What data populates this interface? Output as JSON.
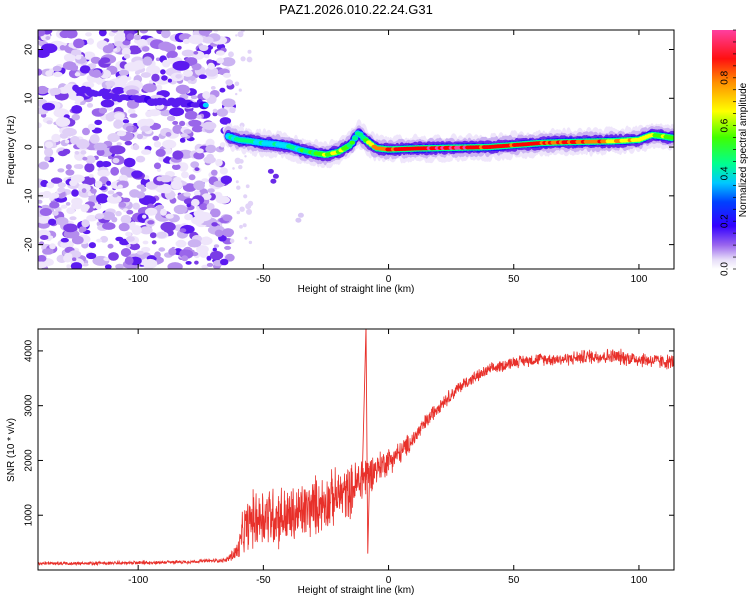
{
  "figure_title": "PAZ1.2026.010.22.24.G31",
  "chart_data": [
    {
      "type": "heatmap",
      "title": "PAZ1.2026.010.22.24.G31",
      "xlabel": "Height of straight line (km)",
      "ylabel": "Frequency (Hz)",
      "xlim": [
        -140,
        114
      ],
      "ylim": [
        -25,
        24
      ],
      "x_ticks": [
        -100,
        -50,
        0,
        50,
        100
      ],
      "y_ticks": [
        -20,
        -10,
        0,
        10,
        20
      ],
      "colorbar": {
        "label": "Normalized spectral amplitude",
        "range": [
          0,
          1
        ],
        "ticks": [
          0.0,
          0.2,
          0.4,
          0.6,
          0.8
        ],
        "colors": [
          "#ffffff",
          "#d8c8f5",
          "#8a50e8",
          "#3300ff",
          "#0000ff",
          "#00e0ff",
          "#00ff80",
          "#40ff00",
          "#ffff00",
          "#ff8000",
          "#ff0000",
          "#ff40a0"
        ]
      },
      "ridge": {
        "x": [
          -64,
          -60,
          -55,
          -50,
          -45,
          -40,
          -35,
          -30,
          -25,
          -20,
          -15,
          -12,
          -10,
          -5,
          0,
          10,
          20,
          30,
          40,
          50,
          55,
          60,
          70,
          80,
          90,
          100,
          105,
          110,
          114
        ],
        "freq": [
          2.2,
          1.5,
          1.2,
          0.8,
          0.6,
          0.2,
          -0.6,
          -1.2,
          -1.6,
          -1.0,
          0.5,
          3.0,
          1.8,
          -0.2,
          -0.5,
          -0.3,
          -0.2,
          -0.1,
          0.0,
          0.4,
          0.6,
          0.8,
          1.0,
          1.1,
          1.2,
          1.5,
          2.5,
          2.2,
          1.8
        ],
        "amp": [
          0.5,
          0.55,
          0.5,
          0.45,
          0.45,
          0.5,
          0.55,
          0.6,
          0.7,
          0.7,
          0.6,
          0.55,
          0.6,
          0.8,
          0.9,
          0.9,
          0.95,
          0.95,
          0.9,
          0.85,
          0.95,
          0.9,
          0.85,
          0.85,
          0.8,
          0.75,
          0.7,
          0.65,
          0.6
        ]
      },
      "noise_region_x": [
        -140,
        -63
      ],
      "noise_streak": {
        "x": [
          -125,
          -115,
          -105,
          -95,
          -85,
          -78,
          -73
        ],
        "freq": [
          12.0,
          11.0,
          10.0,
          9.6,
          9.2,
          8.8,
          8.5
        ]
      }
    },
    {
      "type": "line",
      "title": "",
      "xlabel": "Height of straight line (km)",
      "ylabel": "SNR (10 * v/v)",
      "xlim": [
        -140,
        114
      ],
      "ylim": [
        0,
        4400
      ],
      "x_ticks": [
        -100,
        -50,
        0,
        50,
        100
      ],
      "y_ticks": [
        1000,
        2000,
        3000,
        4000
      ],
      "line_color": "#e8302a",
      "series": [
        {
          "name": "SNR",
          "x": [
            -140,
            -120,
            -100,
            -80,
            -65,
            -60,
            -58,
            -55,
            -50,
            -45,
            -40,
            -35,
            -30,
            -25,
            -20,
            -15,
            -12,
            -10,
            -8,
            -5,
            0,
            5,
            10,
            15,
            20,
            30,
            40,
            50,
            60,
            70,
            80,
            90,
            100,
            110,
            114
          ],
          "y": [
            120,
            120,
            130,
            150,
            180,
            350,
            700,
            900,
            1000,
            1000,
            950,
            1050,
            1150,
            1250,
            1350,
            1450,
            1600,
            1700,
            1750,
            1850,
            2000,
            2150,
            2400,
            2700,
            3000,
            3400,
            3650,
            3800,
            3850,
            3850,
            3900,
            3900,
            3850,
            3800,
            3800
          ],
          "noise": [
            40,
            40,
            40,
            40,
            40,
            250,
            500,
            600,
            700,
            700,
            650,
            650,
            650,
            600,
            600,
            550,
            550,
            600,
            400,
            350,
            300,
            250,
            200,
            180,
            160,
            140,
            130,
            130,
            130,
            140,
            160,
            170,
            170,
            160,
            160
          ]
        }
      ],
      "annotations": [
        {
          "x": -9,
          "y": 4400,
          "text": ""
        }
      ]
    }
  ]
}
